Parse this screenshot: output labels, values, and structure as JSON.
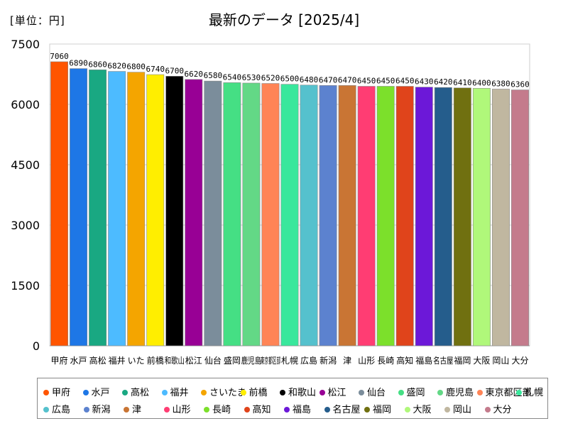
{
  "unit_label": "[単位：円]",
  "chart_data": {
    "type": "bar",
    "title": "最新のデータ [2025/4]",
    "categories": [
      "甲府",
      "水戸",
      "高松",
      "福井",
      "さいたま",
      "前橋",
      "和歌山",
      "松江",
      "仙台",
      "盛岡",
      "鹿児島",
      "東京都区部",
      "札幌",
      "広島",
      "新潟",
      "津",
      "山形",
      "長崎",
      "高知",
      "福島",
      "名古屋",
      "福岡",
      "大阪",
      "岡山",
      "大分"
    ],
    "values": [
      7060,
      6890,
      6860,
      6820,
      6800,
      6740,
      6700,
      6620,
      6580,
      6540,
      6530,
      6520,
      6500,
      6480,
      6470,
      6470,
      6450,
      6450,
      6450,
      6430,
      6420,
      6410,
      6400,
      6380,
      6360
    ],
    "value_labels": [
      "7060",
      "6890",
      "6860",
      "6820",
      "6800",
      "6740",
      "6700",
      "6620",
      "6580",
      "6540",
      "6530",
      "6520",
      "6500",
      "6480",
      "6470",
      "6470",
      "6450",
      "6450",
      "6450",
      "6430",
      "6420",
      "6410",
      "6400",
      "6380",
      "6360"
    ],
    "x_tick_labels": [
      "甲府",
      "水戸",
      "高松",
      "福井",
      "いた",
      "前橋",
      "和歌山",
      "松江",
      "仙台",
      "盛岡",
      "鹿児島",
      "東京都区部",
      "札幌",
      "広島",
      "新潟",
      "津",
      "山形",
      "長崎",
      "高知",
      "福島",
      "名古屋",
      "福岡",
      "大阪",
      "岡山",
      "大分"
    ],
    "colors": [
      "#ff5500",
      "#1e77e6",
      "#19a882",
      "#4dbbff",
      "#f4a500",
      "#ffee00",
      "#000000",
      "#980095",
      "#7b8d9b",
      "#45df84",
      "#63d886",
      "#ff8456",
      "#39e79c",
      "#55c1cd",
      "#5c82cf",
      "#c97534",
      "#ff3d73",
      "#7ce02b",
      "#e0441b",
      "#6c18d8",
      "#255d8c",
      "#707010",
      "#b0f87a",
      "#c0b7a0",
      "#c47b8c"
    ],
    "ylim": [
      0,
      7500
    ],
    "yticks": [
      0,
      1500,
      3000,
      4500,
      6000,
      7500
    ],
    "grid": true,
    "legend_position": "bottom"
  }
}
